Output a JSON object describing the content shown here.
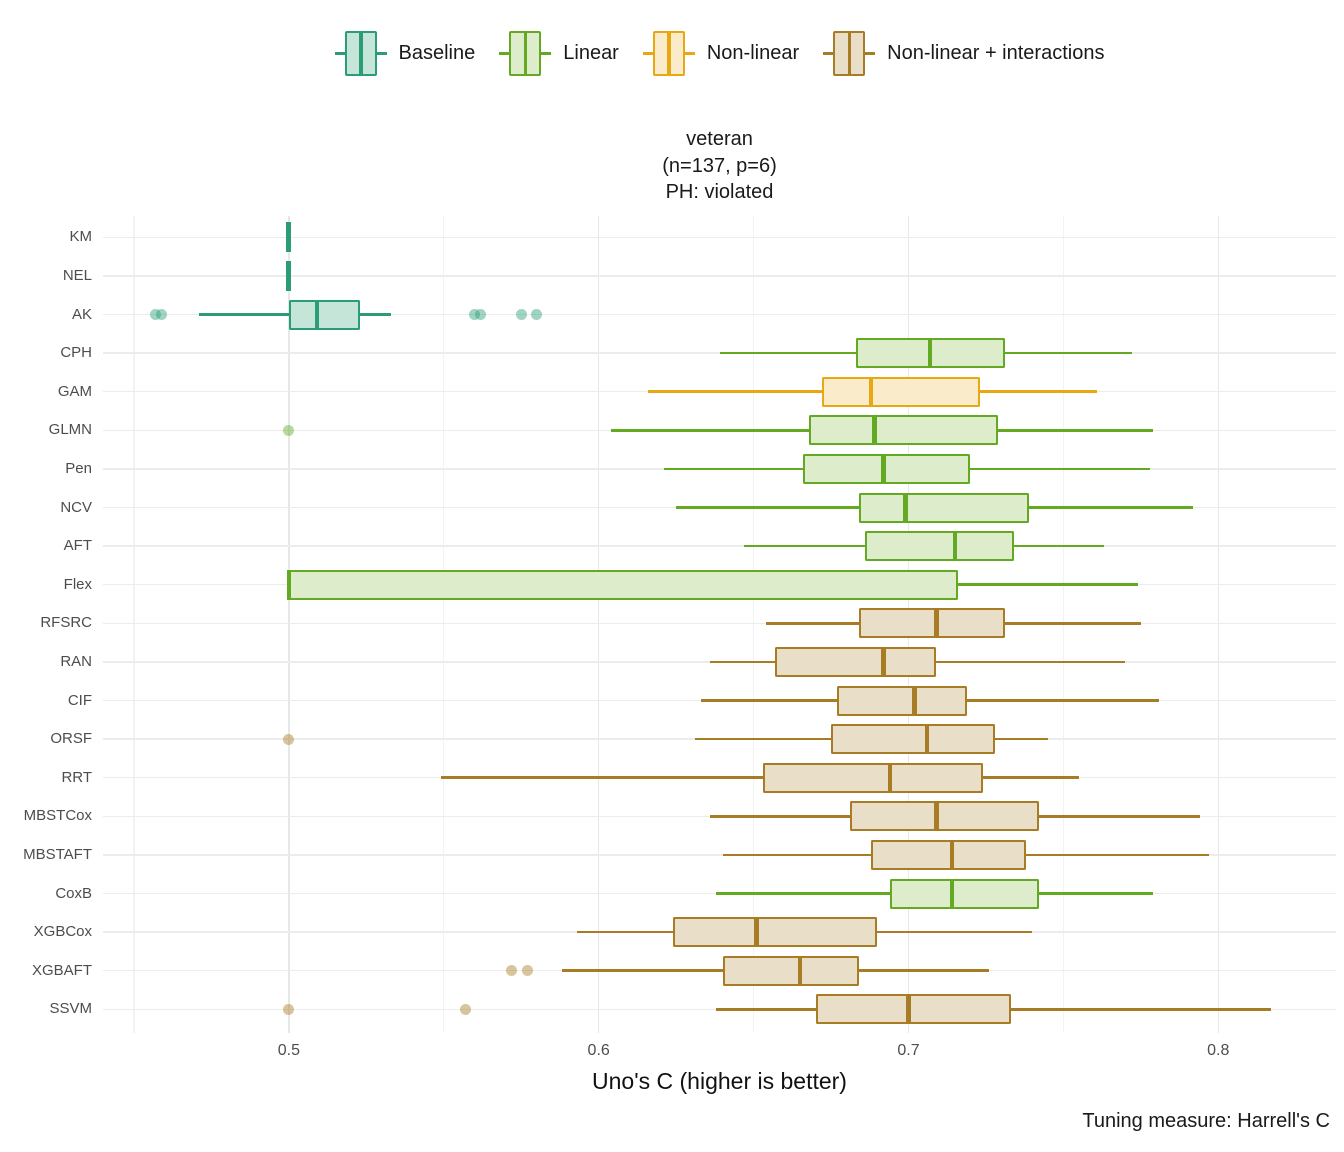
{
  "title": {
    "dataset": "veteran",
    "dims": "(n=137, p=6)",
    "ph": "PH: violated"
  },
  "caption": "Tuning measure: Harrell's C",
  "chart_data": {
    "type": "boxplot",
    "orientation": "horizontal",
    "title": "veteran (n=137, p=6) PH: violated",
    "xlabel": "Uno's C (higher is better)",
    "ylabel": "",
    "xlim": [
      0.44,
      0.838
    ],
    "grid": true,
    "legend_position": "top",
    "xticks": [
      {
        "v": 0.5,
        "label": "0.5"
      },
      {
        "v": 0.6,
        "label": "0.6"
      },
      {
        "v": 0.7,
        "label": "0.7"
      },
      {
        "v": 0.8,
        "label": "0.8"
      }
    ],
    "minor_ticks": [
      0.45,
      0.55,
      0.65,
      0.75
    ],
    "groups": {
      "baseline": {
        "label": "Baseline",
        "stroke": "#2a9d78",
        "fill": "#c5e5d8",
        "dot": "rgba(42,157,120,0.45)"
      },
      "linear": {
        "label": "Linear",
        "stroke": "#63a922",
        "fill": "#ddecca",
        "dot": "rgba(99,169,34,0.45)"
      },
      "nonlinear": {
        "label": "Non-linear",
        "stroke": "#e9a712",
        "fill": "#faecca",
        "dot": "rgba(233,167,18,0.45)"
      },
      "interactions": {
        "label": "Non-linear + interactions",
        "stroke": "#a87c25",
        "fill": "#e9dec8",
        "dot": "rgba(168,124,37,0.45)"
      }
    },
    "rows": [
      {
        "model": "KM",
        "group": "baseline",
        "min": 0.5,
        "q1": 0.5,
        "median": 0.5,
        "q3": 0.5,
        "max": 0.5,
        "outliers": []
      },
      {
        "model": "NEL",
        "group": "baseline",
        "min": 0.5,
        "q1": 0.5,
        "median": 0.5,
        "q3": 0.5,
        "max": 0.5,
        "outliers": []
      },
      {
        "model": "AK",
        "group": "baseline",
        "min": 0.471,
        "q1": 0.5,
        "median": 0.509,
        "q3": 0.523,
        "max": 0.533,
        "outliers": [
          0.457,
          0.459,
          0.56,
          0.562,
          0.575,
          0.58
        ]
      },
      {
        "model": "CPH",
        "group": "linear",
        "min": 0.639,
        "q1": 0.683,
        "median": 0.707,
        "q3": 0.731,
        "max": 0.772,
        "outliers": []
      },
      {
        "model": "GAM",
        "group": "nonlinear",
        "min": 0.616,
        "q1": 0.672,
        "median": 0.688,
        "q3": 0.723,
        "max": 0.761,
        "outliers": []
      },
      {
        "model": "GLMN",
        "group": "linear",
        "min": 0.604,
        "q1": 0.668,
        "median": 0.689,
        "q3": 0.729,
        "max": 0.779,
        "outliers": [
          0.5
        ]
      },
      {
        "model": "Pen",
        "group": "linear",
        "min": 0.621,
        "q1": 0.666,
        "median": 0.692,
        "q3": 0.72,
        "max": 0.778,
        "outliers": []
      },
      {
        "model": "NCV",
        "group": "linear",
        "min": 0.625,
        "q1": 0.684,
        "median": 0.699,
        "q3": 0.739,
        "max": 0.792,
        "outliers": []
      },
      {
        "model": "AFT",
        "group": "linear",
        "min": 0.647,
        "q1": 0.686,
        "median": 0.715,
        "q3": 0.734,
        "max": 0.763,
        "outliers": []
      },
      {
        "model": "Flex",
        "group": "linear",
        "min": 0.5,
        "q1": 0.5,
        "median": 0.5,
        "q3": 0.716,
        "max": 0.774,
        "outliers": []
      },
      {
        "model": "RFSRC",
        "group": "interactions",
        "min": 0.654,
        "q1": 0.684,
        "median": 0.709,
        "q3": 0.731,
        "max": 0.775,
        "outliers": []
      },
      {
        "model": "RAN",
        "group": "interactions",
        "min": 0.636,
        "q1": 0.657,
        "median": 0.692,
        "q3": 0.709,
        "max": 0.77,
        "outliers": []
      },
      {
        "model": "CIF",
        "group": "interactions",
        "min": 0.633,
        "q1": 0.677,
        "median": 0.702,
        "q3": 0.719,
        "max": 0.781,
        "outliers": []
      },
      {
        "model": "ORSF",
        "group": "interactions",
        "min": 0.631,
        "q1": 0.675,
        "median": 0.706,
        "q3": 0.728,
        "max": 0.745,
        "outliers": [
          0.5
        ]
      },
      {
        "model": "RRT",
        "group": "interactions",
        "min": 0.549,
        "q1": 0.653,
        "median": 0.694,
        "q3": 0.724,
        "max": 0.755,
        "outliers": []
      },
      {
        "model": "MBSTCox",
        "group": "interactions",
        "min": 0.636,
        "q1": 0.681,
        "median": 0.709,
        "q3": 0.742,
        "max": 0.794,
        "outliers": []
      },
      {
        "model": "MBSTAFT",
        "group": "interactions",
        "min": 0.64,
        "q1": 0.688,
        "median": 0.714,
        "q3": 0.738,
        "max": 0.797,
        "outliers": []
      },
      {
        "model": "CoxB",
        "group": "linear",
        "min": 0.638,
        "q1": 0.694,
        "median": 0.714,
        "q3": 0.742,
        "max": 0.779,
        "outliers": []
      },
      {
        "model": "XGBCox",
        "group": "interactions",
        "min": 0.593,
        "q1": 0.624,
        "median": 0.651,
        "q3": 0.69,
        "max": 0.74,
        "outliers": []
      },
      {
        "model": "XGBAFT",
        "group": "interactions",
        "min": 0.588,
        "q1": 0.64,
        "median": 0.665,
        "q3": 0.684,
        "max": 0.726,
        "outliers": [
          0.572,
          0.577
        ]
      },
      {
        "model": "SSVM",
        "group": "interactions",
        "min": 0.638,
        "q1": 0.67,
        "median": 0.7,
        "q3": 0.733,
        "max": 0.817,
        "outliers": [
          0.5,
          0.557
        ]
      }
    ]
  }
}
